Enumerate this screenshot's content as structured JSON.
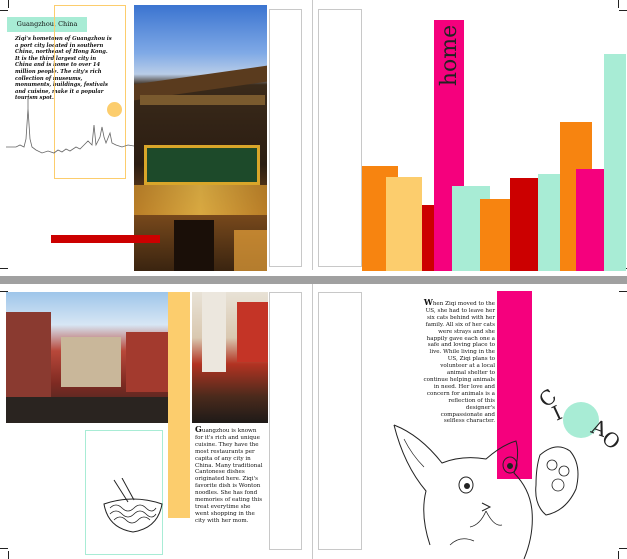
{
  "spread_top_left": {
    "location_tag": "Guangzhou, China",
    "intro_text": "Ziqi's hometown of Guangzhou is a port city located in southern China, northeast of Hong Kong. It is the third largest city in China and is home to over 14 million people. The city's rich collection of museums, monuments, buildings, festivals and cuisine, make it a popular tourism spot."
  },
  "spread_top_right": {
    "vertical_word": "home",
    "bar_chart_colors": [
      "#f78410",
      "#fccd6d",
      "#cc0000",
      "#f5007d",
      "#a8ecd5",
      "#f78410",
      "#cc0000",
      "#a8ecd5",
      "#f78410",
      "#f5007d",
      "#a8ecd5"
    ]
  },
  "spread_bottom_left": {
    "cuisine_text_dropcap": "G",
    "cuisine_text": "uangzhou is known for it's rich and unique cuisine. They have the most restaurants per capita of any city in China. Many traditional Cantonese dishes originated here. Ziqi's favorite dish is Wonton noodles. She has fond memories of eating this treat everytime she went shopping in the city with her mom."
  },
  "spread_bottom_right": {
    "story_dropcap": "W",
    "story_text": "hen Ziqi moved to the US, she had to leave her six cats behind with her family. All six of her cats were strays and she happily gave each one a safe and loving place to live. While living in the US, Ziqi plans to volunteer at a local animal shelter to continue helping animals in need. Her love and concern for animals is a reflection of this designer's compassionate and selfless character.",
    "ciao_letters": [
      "C",
      "I",
      "A",
      "O"
    ]
  },
  "colors": {
    "mint": "#a8ecd5",
    "orange": "#f78410",
    "yellow": "#fccd6d",
    "red": "#cc0000",
    "magenta": "#f5007d",
    "grey_rule": "#a0a0a0"
  }
}
